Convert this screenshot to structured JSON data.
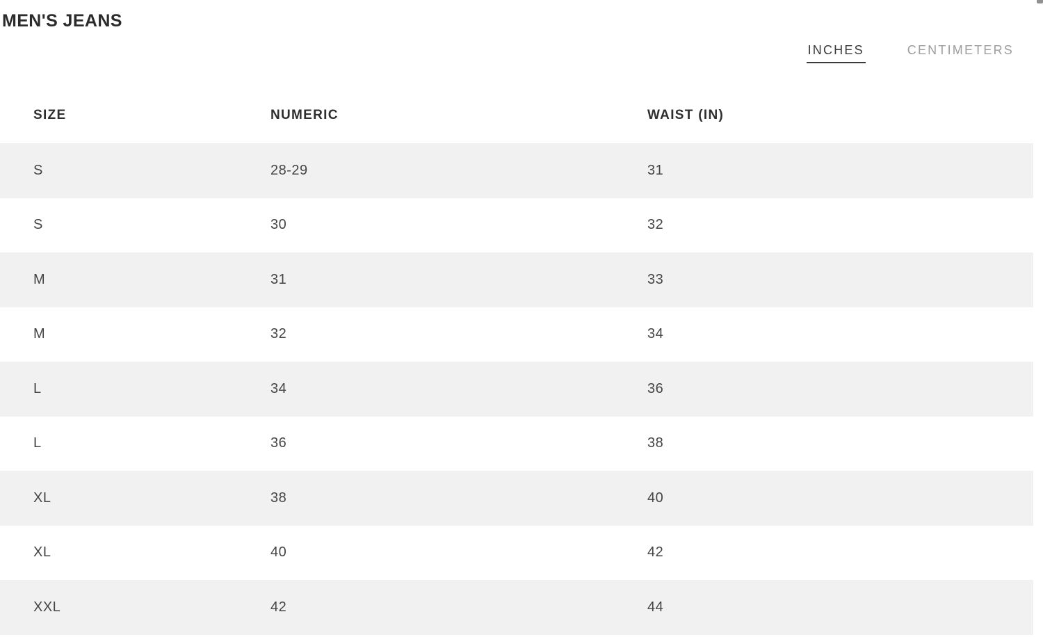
{
  "page": {
    "title": "MEN'S JEANS"
  },
  "unit_toggle": {
    "options": [
      {
        "label": "INCHES",
        "active": true
      },
      {
        "label": "CENTIMETERS",
        "active": false
      }
    ]
  },
  "table": {
    "columns": [
      "SIZE",
      "NUMERIC",
      "WAIST (IN)"
    ],
    "rows": [
      [
        "S",
        "28-29",
        "31"
      ],
      [
        "S",
        "30",
        "32"
      ],
      [
        "M",
        "31",
        "33"
      ],
      [
        "M",
        "32",
        "34"
      ],
      [
        "L",
        "34",
        "36"
      ],
      [
        "L",
        "36",
        "38"
      ],
      [
        "XL",
        "38",
        "40"
      ],
      [
        "XL",
        "40",
        "42"
      ],
      [
        "XXL",
        "42",
        "44"
      ]
    ]
  },
  "colors": {
    "stripe": "#f1f1f1",
    "text_primary": "#2b2b2b",
    "text_cell": "#454545",
    "active_tab": "#3a3a3a",
    "inactive_tab": "#9e9e9e",
    "scrollbar": "#909090"
  }
}
